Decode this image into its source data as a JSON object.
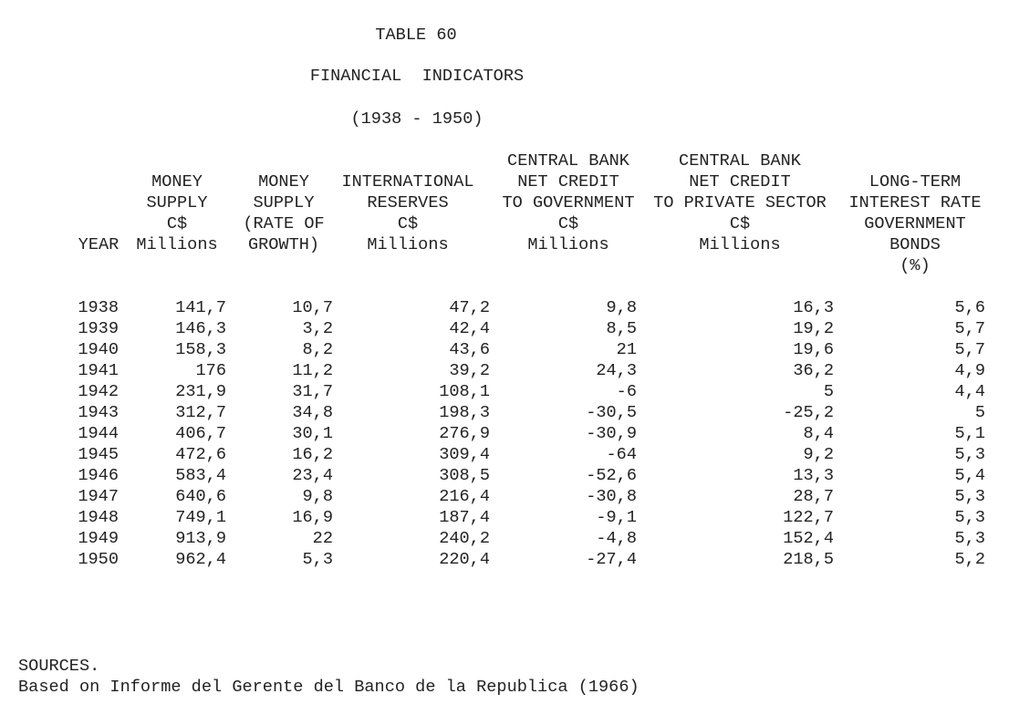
{
  "title": {
    "table_number": "TABLE 60",
    "name": "FINANCIAL  INDICATORS",
    "period": "(1938 - 1950)"
  },
  "columns": [
    {
      "key": "year",
      "header": [
        "YEAR"
      ]
    },
    {
      "key": "money_supply",
      "header": [
        "MONEY",
        "SUPPLY",
        "C$",
        "Millions"
      ]
    },
    {
      "key": "money_supply_growth",
      "header": [
        "MONEY",
        "SUPPLY",
        "(RATE OF",
        "GROWTH)"
      ]
    },
    {
      "key": "international_reserves",
      "header": [
        "INTERNATIONAL",
        "RESERVES",
        "C$",
        "Millions"
      ]
    },
    {
      "key": "cb_credit_government",
      "header": [
        "CENTRAL BANK",
        "NET CREDIT",
        "TO GOVERNMENT",
        "C$",
        "Millions"
      ]
    },
    {
      "key": "cb_credit_private",
      "header": [
        "CENTRAL BANK",
        "NET CREDIT",
        "TO PRIVATE SECTOR",
        "C$",
        "Millions"
      ]
    },
    {
      "key": "long_term_rate",
      "header": [
        "LONG-TERM",
        "INTEREST RATE",
        "GOVERNMENT",
        "BONDS",
        "(%)"
      ]
    }
  ],
  "rows": [
    [
      "1938",
      "141,7",
      "10,7",
      "47,2",
      "9,8",
      "16,3",
      "5,6"
    ],
    [
      "1939",
      "146,3",
      "3,2",
      "42,4",
      "8,5",
      "19,2",
      "5,7"
    ],
    [
      "1940",
      "158,3",
      "8,2",
      "43,6",
      "21",
      "19,6",
      "5,7"
    ],
    [
      "1941",
      "176",
      "11,2",
      "39,2",
      "24,3",
      "36,2",
      "4,9"
    ],
    [
      "1942",
      "231,9",
      "31,7",
      "108,1",
      "-6",
      "5",
      "4,4"
    ],
    [
      "1943",
      "312,7",
      "34,8",
      "198,3",
      "-30,5",
      "-25,2",
      "5"
    ],
    [
      "1944",
      "406,7",
      "30,1",
      "276,9",
      "-30,9",
      "8,4",
      "5,1"
    ],
    [
      "1945",
      "472,6",
      "16,2",
      "309,4",
      "-64",
      "9,2",
      "5,3"
    ],
    [
      "1946",
      "583,4",
      "23,4",
      "308,5",
      "-52,6",
      "13,3",
      "5,4"
    ],
    [
      "1947",
      "640,6",
      "9,8",
      "216,4",
      "-30,8",
      "28,7",
      "5,3"
    ],
    [
      "1948",
      "749,1",
      "16,9",
      "187,4",
      "-9,1",
      "122,7",
      "5,3"
    ],
    [
      "1949",
      "913,9",
      "22",
      "240,2",
      "-4,8",
      "152,4",
      "5,3"
    ],
    [
      "1950",
      "962,4",
      "5,3",
      "220,4",
      "-27,4",
      "218,5",
      "5,2"
    ]
  ],
  "sources": {
    "label": "SOURCES.",
    "text": "Based on Informe del Gerente del Banco de la Republica (1966)"
  }
}
